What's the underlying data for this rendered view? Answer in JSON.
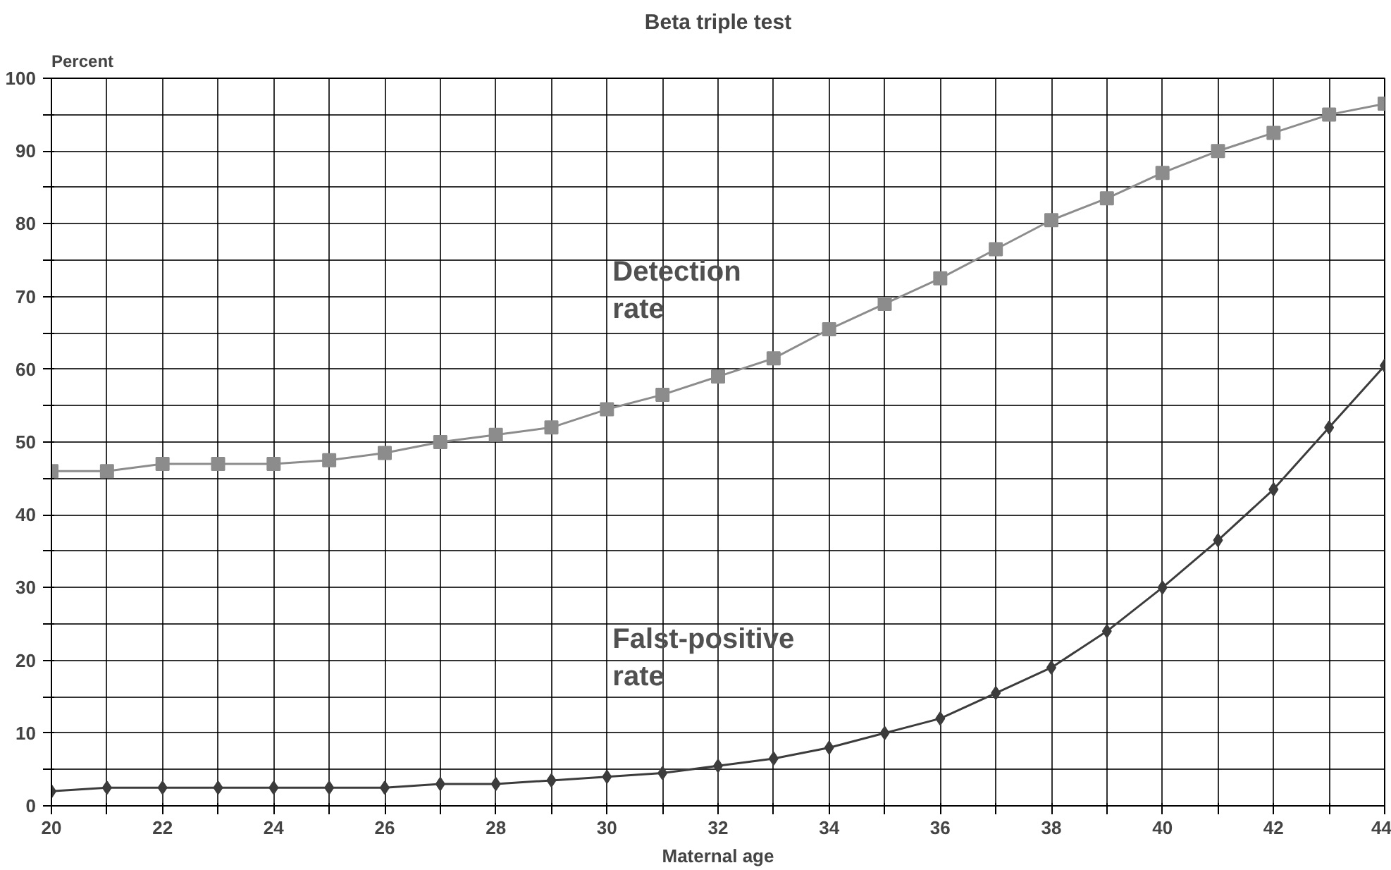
{
  "chart_data": {
    "type": "line",
    "title": "Beta triple test",
    "xlabel": "Maternal age",
    "ylabel": "Percent",
    "x": [
      20,
      21,
      22,
      23,
      24,
      25,
      26,
      27,
      28,
      29,
      30,
      31,
      32,
      33,
      34,
      35,
      36,
      37,
      38,
      39,
      40,
      41,
      42,
      43,
      44
    ],
    "series": [
      {
        "name": "Detection\nrate",
        "color": "#8c8c8c",
        "marker": "square",
        "values": [
          46,
          46,
          47,
          47,
          47,
          47.5,
          48.5,
          50,
          51,
          52,
          54.5,
          56.5,
          59,
          61.5,
          65.5,
          69,
          72.5,
          76.5,
          80.5,
          83.5,
          87,
          90,
          92.5,
          95,
          96.5
        ]
      },
      {
        "name": "Falst-positive\nrate",
        "color": "#3c3c3c",
        "marker": "diamond",
        "values": [
          2,
          2.5,
          2.5,
          2.5,
          2.5,
          2.5,
          2.5,
          3,
          3,
          3.5,
          4,
          4.5,
          5.5,
          6.5,
          8,
          10,
          12,
          15.5,
          19,
          24,
          30,
          36.5,
          43.5,
          52,
          60.5
        ]
      }
    ],
    "xlim": [
      20,
      44
    ],
    "ylim": [
      0,
      100
    ],
    "xticks": [
      20,
      {
        "value": 21,
        "label": null
      },
      22,
      {
        "value": 23,
        "label": null
      },
      24,
      {
        "value": 25,
        "label": null
      },
      26,
      {
        "value": 27,
        "label": null
      },
      28,
      {
        "value": 29,
        "label": null
      },
      30,
      {
        "value": 31,
        "label": null
      },
      32,
      {
        "value": 33,
        "label": null
      },
      34,
      {
        "value": 35,
        "label": null
      },
      36,
      {
        "value": 37,
        "label": null
      },
      38,
      {
        "value": 39,
        "label": null
      },
      40,
      {
        "value": 41,
        "label": null
      },
      42,
      {
        "value": 43,
        "label": null
      },
      44
    ],
    "yticks": [
      0,
      {
        "value": 5,
        "label": null
      },
      10,
      {
        "value": 15,
        "label": null
      },
      20,
      {
        "value": 25,
        "label": null
      },
      30,
      {
        "value": 35,
        "label": null
      },
      40,
      {
        "value": 45,
        "label": null
      },
      50,
      {
        "value": 55,
        "label": null
      },
      60,
      {
        "value": 65,
        "label": null
      },
      70,
      {
        "value": 75,
        "label": null
      },
      80,
      {
        "value": 85,
        "label": null
      },
      90,
      {
        "value": 95,
        "label": null
      },
      100
    ],
    "grid": true
  }
}
